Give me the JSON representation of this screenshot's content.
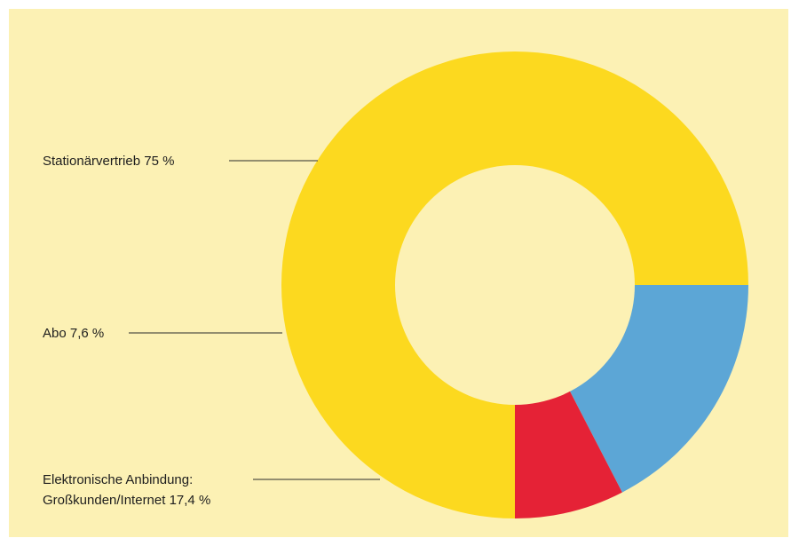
{
  "chart_data": {
    "type": "pie",
    "donut": true,
    "title": "",
    "slices": [
      {
        "label": "Stationärvertrieb 75 %",
        "value": 75.0,
        "color": "#fcd91f"
      },
      {
        "label": "Elektronische Anbindung: Großkunden/Internet 17,4 %",
        "label_lines": [
          "Elektronische Anbindung:",
          "Großkunden/Internet 17,4 %"
        ],
        "value": 17.4,
        "color": "#5ca6d6"
      },
      {
        "label": "Abo 7,6 %",
        "value": 7.6,
        "color": "#e52236"
      }
    ],
    "start_angle_deg": 180,
    "direction": "clockwise_from_bottom",
    "colors": {
      "background_panel": "#fcf1b4",
      "center_hole": "#fcf1b4"
    }
  }
}
